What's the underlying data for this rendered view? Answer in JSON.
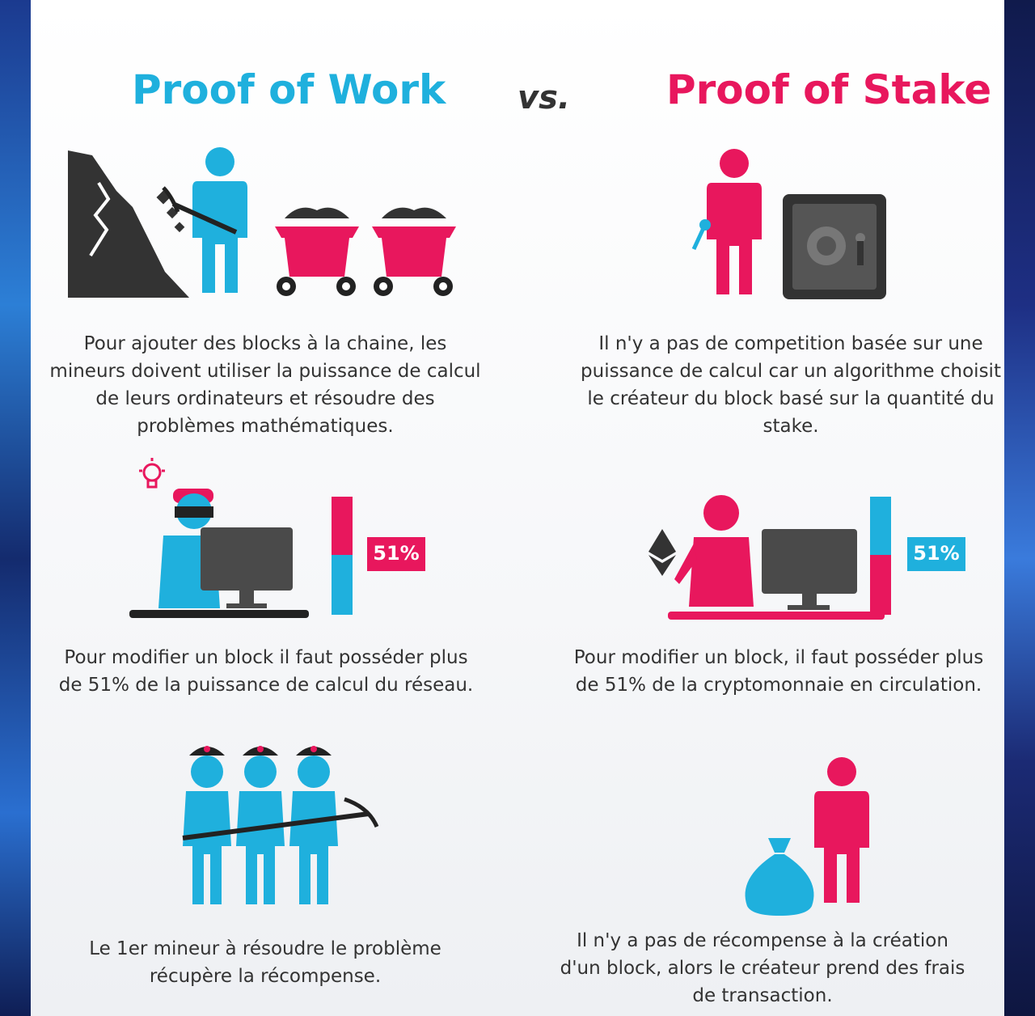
{
  "header": {
    "pow_title": "Proof of Work",
    "vs": "vs.",
    "pos_title": "Proof of Stake"
  },
  "pow": {
    "text1": "Pour ajouter des blocks à la chaine, les mineurs doivent utiliser la puissance de calcul de leurs ordinateurs et résoudre des problèmes mathématiques.",
    "badge": "51%",
    "text2": "Pour modifier un block il faut posséder plus de 51% de la puissance de calcul du réseau.",
    "text3": "Le 1er mineur à résoudre le problème récupère la récompense."
  },
  "pos": {
    "text1": "Il n'y a pas de competition basée sur une puissance de calcul car un algorithme choisit le créateur du block basé sur la quantité du stake.",
    "badge": "51%",
    "text2": "Pour modifier un block, il faut posséder plus de 51% de la cryptomonnaie en circulation.",
    "text3": "Il n'y a pas de récompense à la création d'un block, alors le créateur prend des frais de transaction."
  },
  "colors": {
    "cyan": "#1fb0dd",
    "pink": "#e8175d",
    "dark": "#3a3a3a"
  }
}
